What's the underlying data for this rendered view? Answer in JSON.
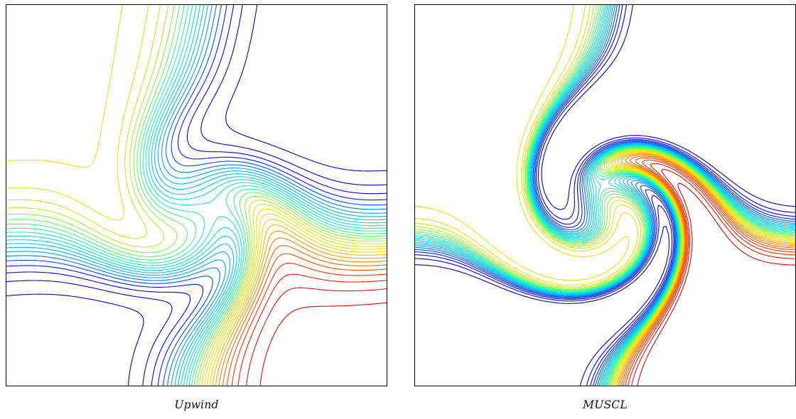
{
  "chart_data": [
    {
      "type": "contour",
      "caption": "Upwind",
      "title": "",
      "xlabel": "",
      "ylabel": "",
      "levels": 30,
      "colormap": "jet",
      "colormap_stops": [
        "#00008b",
        "#0000ff",
        "#00a0ff",
        "#00e0e0",
        "#30ff90",
        "#c0f020",
        "#ffe000",
        "#ff8000",
        "#ff2000",
        "#cc0000"
      ],
      "resolution": "diffusive",
      "grid": false,
      "axes_visible": false
    },
    {
      "type": "contour",
      "caption": "MUSCL",
      "title": "",
      "xlabel": "",
      "ylabel": "",
      "levels": 30,
      "colormap": "jet",
      "colormap_stops": [
        "#00008b",
        "#0000ff",
        "#00a0ff",
        "#00e0e0",
        "#30ff90",
        "#c0f020",
        "#ffe000",
        "#ff8000",
        "#ff2000",
        "#cc0000"
      ],
      "resolution": "sharp",
      "grid": false,
      "axes_visible": false
    }
  ]
}
